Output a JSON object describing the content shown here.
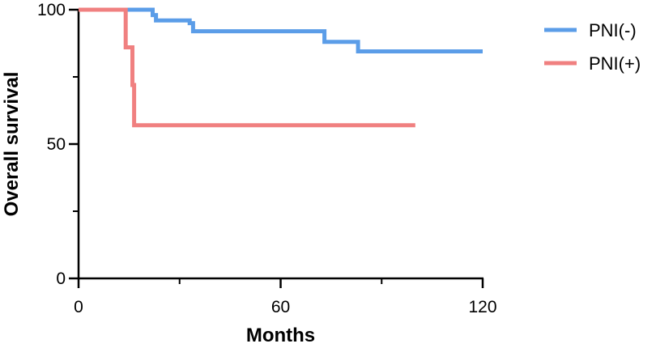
{
  "chart_data": {
    "type": "line",
    "subtype": "kaplan-meier-step",
    "title": "",
    "xlabel": "Months",
    "ylabel": "Overall survival",
    "xlim": [
      0,
      120
    ],
    "ylim": [
      0,
      100
    ],
    "xticks": [
      "0",
      "60",
      "120"
    ],
    "yticks": [
      "0",
      "50",
      "100"
    ],
    "grid": false,
    "legend_position": "top-right",
    "series": [
      {
        "name": "PNI(-)",
        "color": "#5b9de8",
        "points": [
          [
            0,
            100
          ],
          [
            22,
            100
          ],
          [
            22,
            98
          ],
          [
            23,
            98
          ],
          [
            23,
            96
          ],
          [
            33,
            96
          ],
          [
            33,
            95
          ],
          [
            34,
            95
          ],
          [
            34,
            92
          ],
          [
            73,
            92
          ],
          [
            73,
            88
          ],
          [
            83,
            88
          ],
          [
            83,
            84.5
          ],
          [
            120,
            84.5
          ]
        ]
      },
      {
        "name": "PNI(+)",
        "color": "#f08080",
        "points": [
          [
            0,
            100
          ],
          [
            14,
            100
          ],
          [
            14,
            86
          ],
          [
            16,
            86
          ],
          [
            16,
            72
          ],
          [
            16.5,
            72
          ],
          [
            16.5,
            57
          ],
          [
            100,
            57
          ]
        ]
      }
    ]
  }
}
